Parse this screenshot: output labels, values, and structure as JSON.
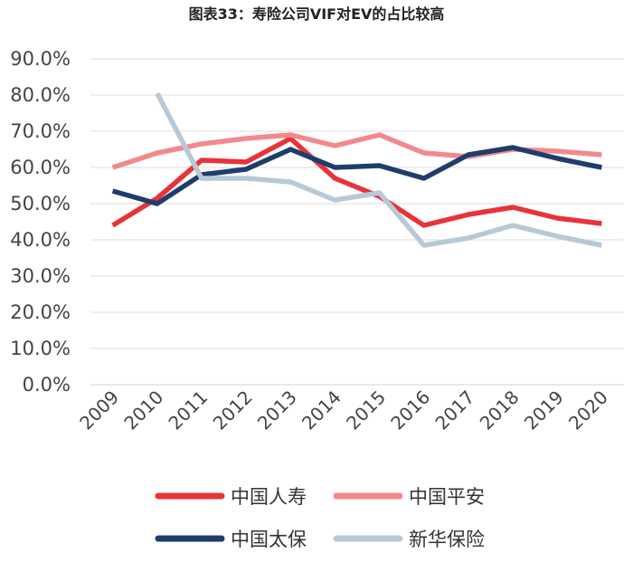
{
  "chart_data": {
    "type": "line",
    "title": "图表33：寿险公司VIF对EV的占比较高",
    "xlabel": "",
    "ylabel": "",
    "ylim": [
      0,
      90
    ],
    "y_ticks": [
      "0.0%",
      "10.0%",
      "20.0%",
      "30.0%",
      "40.0%",
      "50.0%",
      "60.0%",
      "70.0%",
      "80.0%",
      "90.0%"
    ],
    "categories": [
      "2009",
      "2010",
      "2011",
      "2012",
      "2013",
      "2014",
      "2015",
      "2016",
      "2017",
      "2018",
      "2019",
      "2020"
    ],
    "grid": true,
    "legend_position": "bottom",
    "series": [
      {
        "name": "中国人寿",
        "color": "#e8333a",
        "values": [
          44,
          51.5,
          62,
          61.5,
          68,
          57,
          52,
          44,
          47,
          49,
          46,
          44.5
        ]
      },
      {
        "name": "中国平安",
        "color": "#f08a8c",
        "values": [
          60,
          64,
          66.5,
          68,
          69,
          66,
          69,
          64,
          63,
          65,
          64.5,
          63.5
        ]
      },
      {
        "name": "中国太保",
        "color": "#1f3d6c",
        "values": [
          53.5,
          50,
          58,
          59.5,
          65,
          60,
          60.5,
          57,
          63.5,
          65.5,
          62.5,
          60
        ]
      },
      {
        "name": "新华保险",
        "color": "#b7c9d6",
        "values": [
          null,
          80.5,
          57,
          57,
          56,
          51,
          53,
          38.5,
          40.5,
          44,
          41,
          38.5
        ]
      }
    ]
  }
}
